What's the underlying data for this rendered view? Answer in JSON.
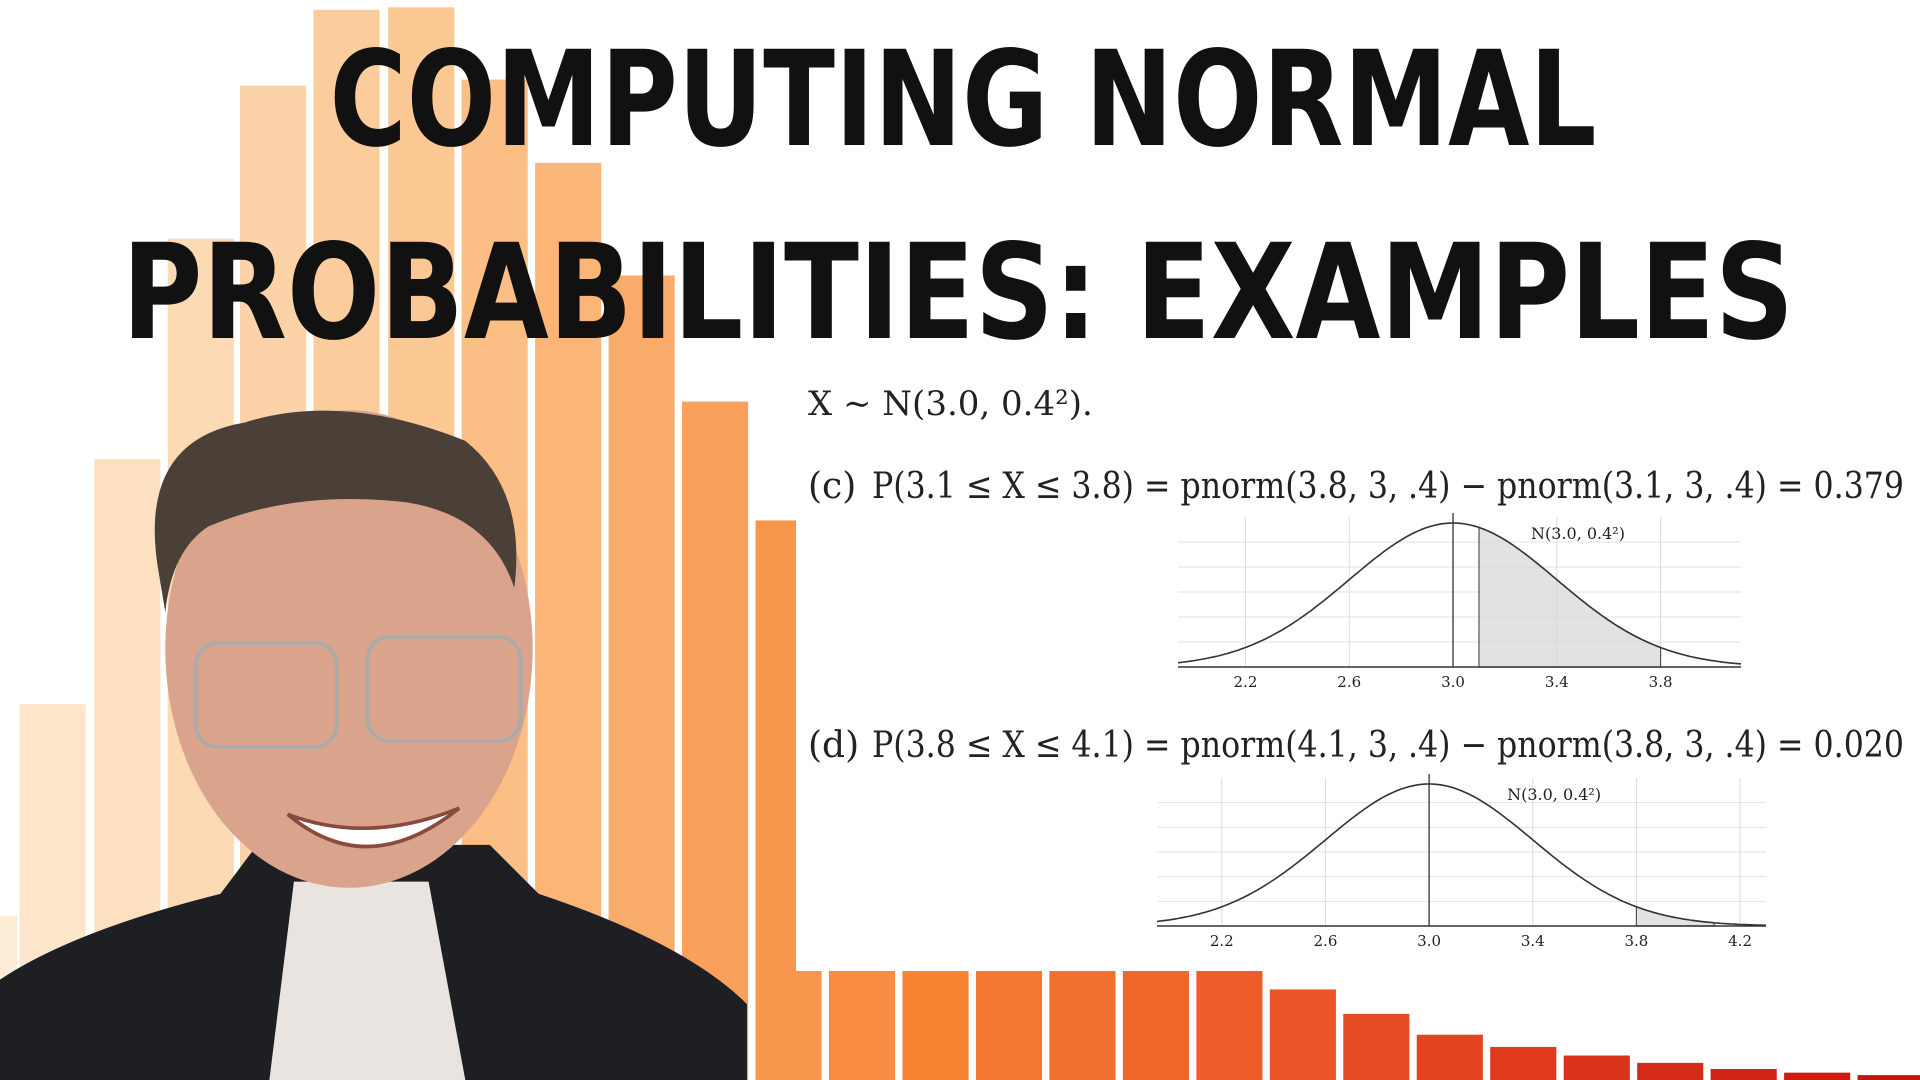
{
  "title": {
    "lines": [
      "COMPUTING NORMAL",
      "PROBABILITIES: EXAMPLES"
    ]
  },
  "distribution": "X ∼ N(3.0, 0.4²).",
  "examples": [
    {
      "label": "(c)",
      "expression": "P(3.1 ≤ X ≤ 3.8) = pnorm(3.8, 3, .4) − pnorm(3.1, 3, .4) = 0.379",
      "plot": {
        "label": "N(3.0, 0.4²)",
        "mean": 3.0,
        "sd": 0.4,
        "xlim": [
          1.94,
          4.11
        ],
        "shade": [
          3.1,
          3.8
        ],
        "xticks": [
          {
            "value": 2.2,
            "label": "2.2"
          },
          {
            "value": 2.6,
            "label": "2.6"
          },
          {
            "value": 3,
            "label": "3.0"
          },
          {
            "value": 3.4,
            "label": "3.4"
          },
          {
            "value": 3.8,
            "label": "3.8"
          }
        ]
      }
    },
    {
      "label": "(d)",
      "expression": "P(3.8 ≤ X ≤ 4.1) = pnorm(4.1, 3, .4) − pnorm(3.8, 3, .4) = 0.020",
      "plot": {
        "label": "N(3.0, 0.4²)",
        "mean": 3.0,
        "sd": 0.4,
        "xlim": [
          1.95,
          4.3
        ],
        "shade": [
          3.8,
          4.1
        ],
        "xticks": [
          {
            "value": 2.2,
            "label": "2.2"
          },
          {
            "value": 2.6,
            "label": "2.6"
          },
          {
            "value": 3,
            "label": "3.0"
          },
          {
            "value": 3.4,
            "label": "3.4"
          },
          {
            "value": 3.8,
            "label": "3.8"
          },
          {
            "value": 4.2,
            "label": "4.2"
          }
        ]
      }
    }
  ]
}
